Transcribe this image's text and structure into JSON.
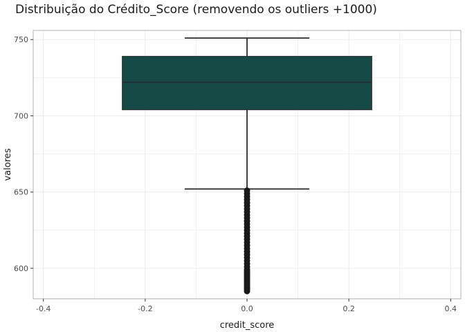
{
  "chart_data": {
    "type": "box",
    "title": "Distribuição do Crédito_Score (removendo os outliers +1000)",
    "xlabel": "credit_score",
    "ylabel": "valores",
    "xlim": [
      -0.42,
      0.42
    ],
    "ylim": [
      580,
      756
    ],
    "x_ticks": [
      -0.4,
      -0.2,
      0.0,
      0.2,
      0.4
    ],
    "x_tick_labels": [
      "-0.4",
      "-0.2",
      "0.0",
      "0.2",
      "0.4"
    ],
    "y_ticks": [
      600,
      650,
      700,
      750
    ],
    "y_tick_labels": [
      "600",
      "650",
      "700",
      "750"
    ],
    "grid": true,
    "box": {
      "x_center": 0.0,
      "box_width": 0.49,
      "whisker_width": 0.245,
      "lower_whisker": 652,
      "q1": 704,
      "median": 722,
      "q3": 739,
      "upper_whisker": 751,
      "outliers": [
        651,
        649,
        647,
        645,
        643,
        641,
        639,
        637,
        635,
        633,
        631,
        629,
        627,
        625,
        623,
        621,
        619,
        617,
        615,
        613,
        611,
        609,
        607,
        605,
        603,
        601,
        599,
        598,
        597,
        596,
        595,
        594,
        593,
        592,
        591,
        590,
        589,
        588,
        587,
        586,
        585
      ]
    },
    "colors": {
      "box_fill": "#154a47",
      "line": "#2b2b2b",
      "grid": "#ebebeb",
      "panel_border": "#b3b3b3",
      "point": "#1a1a1a"
    }
  }
}
